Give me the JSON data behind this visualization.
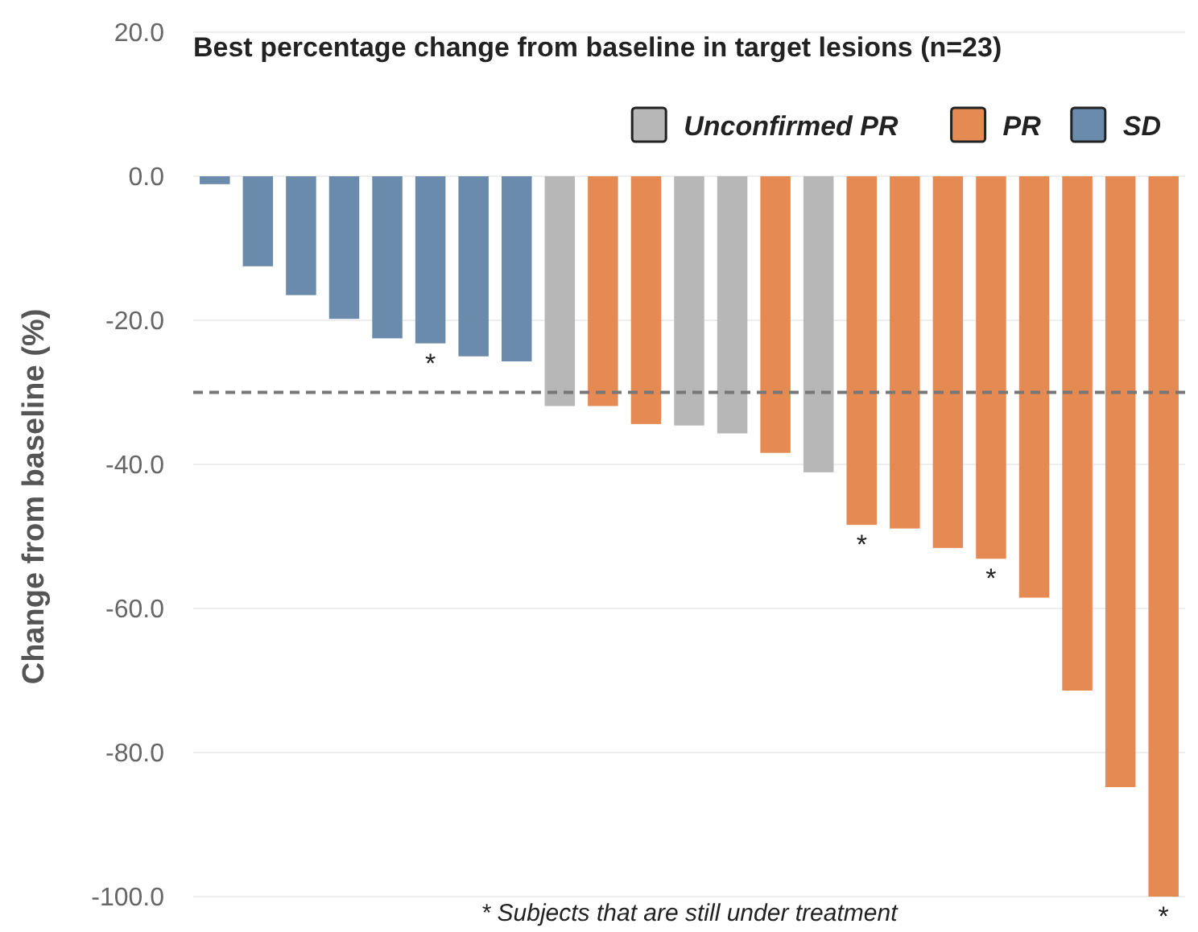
{
  "chart_data": {
    "type": "bar",
    "title": "Best percentage change from baseline in target lesions (n=23)",
    "ylabel": "Change from baseline (%)",
    "categories": [
      null,
      null,
      null,
      null,
      null,
      null,
      null,
      null,
      null,
      null,
      null,
      null,
      null,
      null,
      null,
      null,
      null,
      null,
      null,
      null,
      null,
      null,
      null
    ],
    "series": [
      {
        "name": "Unconfirmed PR",
        "color": "#b7b7b7",
        "values": [
          null,
          null,
          null,
          null,
          null,
          null,
          null,
          null,
          -31.9,
          null,
          null,
          -34.6,
          -35.7,
          null,
          -41.1,
          null,
          null,
          null,
          null,
          null,
          null,
          null,
          null
        ],
        "value_labels": [
          null,
          null,
          null,
          null,
          null,
          null,
          null,
          null,
          null,
          null,
          null,
          null,
          null,
          null,
          null,
          null,
          null,
          null,
          null,
          null,
          null,
          null,
          null
        ]
      },
      {
        "name": "PR",
        "color": "#e58a52",
        "values": [
          null,
          null,
          null,
          null,
          null,
          null,
          null,
          null,
          null,
          -31.9,
          -34.4,
          null,
          null,
          -38.4,
          null,
          -48.4,
          -48.9,
          -51.6,
          -53.1,
          -58.5,
          -71.4,
          -84.8,
          -100
        ],
        "value_labels": [
          null,
          null,
          null,
          null,
          null,
          null,
          null,
          null,
          null,
          null,
          null,
          null,
          null,
          null,
          null,
          "*",
          null,
          null,
          "*",
          null,
          null,
          null,
          "*"
        ]
      },
      {
        "name": "SD",
        "color": "#6a8bab",
        "values": [
          -1.1,
          -12.5,
          -16.5,
          -19.8,
          -22.5,
          -23.2,
          -25.0,
          -25.7,
          null,
          null,
          null,
          null,
          null,
          null,
          null,
          null,
          null,
          null,
          null,
          null,
          null,
          null,
          null
        ],
        "value_labels": [
          null,
          null,
          null,
          null,
          null,
          "*",
          null,
          null,
          null,
          null,
          null,
          null,
          null,
          null,
          null,
          null,
          null,
          null,
          null,
          null,
          null,
          null,
          null
        ]
      }
    ],
    "ylim": [
      -100,
      20
    ],
    "yticks": [
      {
        "value": -100,
        "label": "-100.0"
      },
      {
        "value": -80,
        "label": "-80.0"
      },
      {
        "value": -60,
        "label": "-60.0"
      },
      {
        "value": -40,
        "label": "-40.0"
      },
      {
        "value": -20,
        "label": "-20.0"
      },
      {
        "value": 0,
        "label": "0.0"
      },
      {
        "value": 20,
        "label": "20.0"
      }
    ],
    "grid": "y",
    "legend": "top right",
    "ref_lines": [
      {
        "axis": "y",
        "value": -30,
        "label": null,
        "color": "#777777",
        "line_style": "dashed"
      }
    ],
    "annotations": [
      "* Subjects that are still under treatment"
    ]
  }
}
